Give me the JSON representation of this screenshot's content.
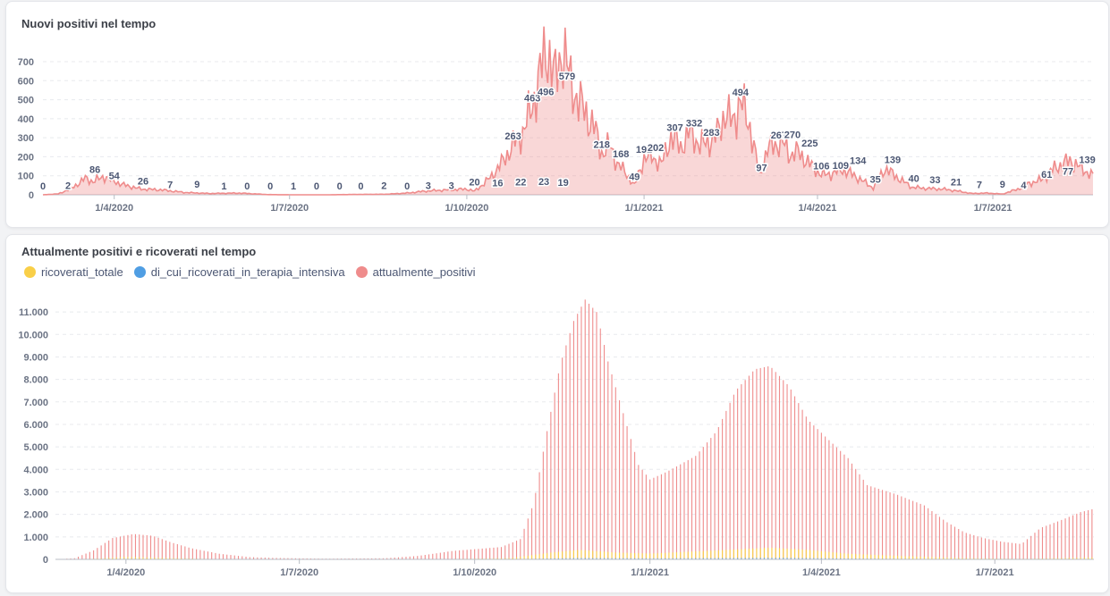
{
  "charts": [
    {
      "title": "Nuovi positivi nel tempo"
    },
    {
      "title": "Attualmente positivi e ricoverati nel tempo",
      "legend": [
        {
          "label": "ricoverati_totale",
          "color": "#f9cf48"
        },
        {
          "label": "di_cui_ricoverati_in_terapia_intensiva",
          "color": "#509ee3"
        },
        {
          "label": "attualmente_positivi",
          "color": "#ef8c8c"
        }
      ]
    }
  ],
  "chart_data": [
    {
      "type": "area",
      "title": "Nuovi positivi nel tempo",
      "x_start": "2020-02-24",
      "x_end": "2021-08-22",
      "x_ticks": [
        "1/4/2020",
        "1/7/2020",
        "1/10/2020",
        "1/1/2021",
        "1/4/2021",
        "1/7/2021"
      ],
      "y_ticks": [
        0,
        100,
        200,
        300,
        400,
        500,
        600,
        700
      ],
      "ylim": [
        0,
        780
      ],
      "color": "#ef8c8c",
      "grid": true,
      "series": [
        {
          "values": [
            [
              "2020-02-24",
              0
            ],
            [
              "2020-03-03",
              5
            ],
            [
              "2020-03-10",
              35
            ],
            [
              "2020-03-17",
              86
            ],
            [
              "2020-03-21",
              70
            ],
            [
              "2020-03-27",
              96
            ],
            [
              "2020-04-05",
              54
            ],
            [
              "2020-04-15",
              30
            ],
            [
              "2020-04-25",
              26
            ],
            [
              "2020-05-08",
              12
            ],
            [
              "2020-05-20",
              7
            ],
            [
              "2020-06-05",
              9
            ],
            [
              "2020-06-20",
              1
            ],
            [
              "2020-07-05",
              0
            ],
            [
              "2020-07-20",
              0
            ],
            [
              "2020-08-05",
              2
            ],
            [
              "2020-08-20",
              3
            ],
            [
              "2020-09-01",
              10
            ],
            [
              "2020-09-10",
              20
            ],
            [
              "2020-09-20",
              25
            ],
            [
              "2020-10-01",
              30
            ],
            [
              "2020-10-05",
              19
            ],
            [
              "2020-10-10",
              60
            ],
            [
              "2020-10-15",
              110
            ],
            [
              "2020-10-20",
              180
            ],
            [
              "2020-10-25",
              263
            ],
            [
              "2020-10-30",
              330
            ],
            [
              "2020-11-04",
              463
            ],
            [
              "2020-11-08",
              640
            ],
            [
              "2020-11-12",
              770
            ],
            [
              "2020-11-16",
              600
            ],
            [
              "2020-11-20",
              780
            ],
            [
              "2020-11-24",
              579
            ],
            [
              "2020-11-28",
              496
            ],
            [
              "2020-12-02",
              420
            ],
            [
              "2020-12-06",
              360
            ],
            [
              "2020-12-10",
              218
            ],
            [
              "2020-12-14",
              260
            ],
            [
              "2020-12-18",
              168
            ],
            [
              "2020-12-22",
              120
            ],
            [
              "2020-12-27",
              49
            ],
            [
              "2021-01-01",
              192
            ],
            [
              "2021-01-05",
              202
            ],
            [
              "2021-01-10",
              160
            ],
            [
              "2021-01-15",
              307
            ],
            [
              "2021-01-20",
              250
            ],
            [
              "2021-01-25",
              332
            ],
            [
              "2021-01-30",
              260
            ],
            [
              "2021-02-04",
              283
            ],
            [
              "2021-02-08",
              320
            ],
            [
              "2021-02-12",
              430
            ],
            [
              "2021-02-16",
              380
            ],
            [
              "2021-02-20",
              494
            ],
            [
              "2021-02-25",
              360
            ],
            [
              "2021-03-02",
              97
            ],
            [
              "2021-03-06",
              240
            ],
            [
              "2021-03-10",
              267
            ],
            [
              "2021-03-14",
              270
            ],
            [
              "2021-03-18",
              210
            ],
            [
              "2021-03-22",
              225
            ],
            [
              "2021-03-28",
              160
            ],
            [
              "2021-04-03",
              106
            ],
            [
              "2021-04-08",
              109
            ],
            [
              "2021-04-14",
              134
            ],
            [
              "2021-04-22",
              90
            ],
            [
              "2021-04-30",
              35
            ],
            [
              "2021-05-06",
              139
            ],
            [
              "2021-05-14",
              80
            ],
            [
              "2021-05-20",
              40
            ],
            [
              "2021-05-28",
              33
            ],
            [
              "2021-06-05",
              30
            ],
            [
              "2021-06-12",
              21
            ],
            [
              "2021-06-20",
              7
            ],
            [
              "2021-06-28",
              9
            ],
            [
              "2021-07-06",
              4
            ],
            [
              "2021-07-14",
              30
            ],
            [
              "2021-07-20",
              61
            ],
            [
              "2021-07-26",
              77
            ],
            [
              "2021-08-02",
              140
            ],
            [
              "2021-08-10",
              180
            ],
            [
              "2021-08-16",
              139
            ],
            [
              "2021-08-22",
              100
            ]
          ]
        }
      ],
      "data_labels": [
        {
          "x": "2020-02-24",
          "v": 0,
          "t": "0"
        },
        {
          "x": "2020-03-08",
          "v": 2,
          "t": "2"
        },
        {
          "x": "2020-03-22",
          "v": 86,
          "t": "86"
        },
        {
          "x": "2020-04-01",
          "v": 54,
          "t": "54"
        },
        {
          "x": "2020-04-16",
          "v": 26,
          "t": "26"
        },
        {
          "x": "2020-04-30",
          "v": 7,
          "t": "7"
        },
        {
          "x": "2020-05-14",
          "v": 9,
          "t": "9"
        },
        {
          "x": "2020-05-28",
          "v": 1,
          "t": "1"
        },
        {
          "x": "2020-06-09",
          "v": 0,
          "t": "0"
        },
        {
          "x": "2020-06-21",
          "v": 0,
          "t": "0"
        },
        {
          "x": "2020-07-03",
          "v": 1,
          "t": "1"
        },
        {
          "x": "2020-07-15",
          "v": 0,
          "t": "0"
        },
        {
          "x": "2020-07-27",
          "v": 0,
          "t": "0"
        },
        {
          "x": "2020-08-07",
          "v": 0,
          "t": "0"
        },
        {
          "x": "2020-08-19",
          "v": 2,
          "t": "2"
        },
        {
          "x": "2020-08-31",
          "v": 0,
          "t": "0"
        },
        {
          "x": "2020-09-11",
          "v": 3,
          "t": "3"
        },
        {
          "x": "2020-09-23",
          "v": 3,
          "t": "3"
        },
        {
          "x": "2020-10-05",
          "v": 20,
          "t": "20"
        },
        {
          "x": "2020-10-17",
          "v": 16,
          "t": "16"
        },
        {
          "x": "2020-10-29",
          "v": 22,
          "t": "22"
        },
        {
          "x": "2020-11-10",
          "v": 23,
          "t": "23"
        },
        {
          "x": "2020-11-20",
          "v": 19,
          "t": "19"
        },
        {
          "x": "2020-10-25",
          "v": 263,
          "t": "263"
        },
        {
          "x": "2020-11-04",
          "v": 463,
          "t": "463"
        },
        {
          "x": "2020-11-11",
          "v": 496,
          "t": "496"
        },
        {
          "x": "2020-11-22",
          "v": 579,
          "t": "579"
        },
        {
          "x": "2020-12-10",
          "v": 218,
          "t": "218"
        },
        {
          "x": "2020-12-20",
          "v": 168,
          "t": "168"
        },
        {
          "x": "2020-12-27",
          "v": 49,
          "t": "49"
        },
        {
          "x": "2021-01-01",
          "v": 192,
          "t": "192"
        },
        {
          "x": "2021-01-07",
          "v": 202,
          "t": "202"
        },
        {
          "x": "2021-01-17",
          "v": 307,
          "t": "307"
        },
        {
          "x": "2021-01-27",
          "v": 332,
          "t": "332"
        },
        {
          "x": "2021-02-05",
          "v": 283,
          "t": "283"
        },
        {
          "x": "2021-02-20",
          "v": 494,
          "t": "494"
        },
        {
          "x": "2021-03-03",
          "v": 97,
          "t": "97"
        },
        {
          "x": "2021-03-12",
          "v": 267,
          "t": "267"
        },
        {
          "x": "2021-03-19",
          "v": 270,
          "t": "270"
        },
        {
          "x": "2021-03-28",
          "v": 225,
          "t": "225"
        },
        {
          "x": "2021-04-03",
          "v": 106,
          "t": "106"
        },
        {
          "x": "2021-04-13",
          "v": 109,
          "t": "109"
        },
        {
          "x": "2021-04-22",
          "v": 134,
          "t": "134"
        },
        {
          "x": "2021-05-01",
          "v": 35,
          "t": "35"
        },
        {
          "x": "2021-05-10",
          "v": 139,
          "t": "139"
        },
        {
          "x": "2021-05-21",
          "v": 40,
          "t": "40"
        },
        {
          "x": "2021-06-01",
          "v": 33,
          "t": "33"
        },
        {
          "x": "2021-06-12",
          "v": 21,
          "t": "21"
        },
        {
          "x": "2021-06-24",
          "v": 7,
          "t": "7"
        },
        {
          "x": "2021-07-06",
          "v": 9,
          "t": "9"
        },
        {
          "x": "2021-07-17",
          "v": 4,
          "t": "4"
        },
        {
          "x": "2021-07-29",
          "v": 61,
          "t": "61"
        },
        {
          "x": "2021-08-09",
          "v": 77,
          "t": "77"
        },
        {
          "x": "2021-08-19",
          "v": 139,
          "t": "139"
        }
      ]
    },
    {
      "type": "bar",
      "title": "Attualmente positivi e ricoverati nel tempo",
      "x_start": "2020-02-24",
      "x_end": "2021-08-22",
      "x_ticks": [
        "1/4/2020",
        "1/7/2020",
        "1/10/2020",
        "1/1/2021",
        "1/4/2021",
        "1/7/2021"
      ],
      "y_ticks": [
        "0",
        "1.000",
        "2.000",
        "3.000",
        "4.000",
        "5.000",
        "6.000",
        "7.000",
        "8.000",
        "9.000",
        "10.000",
        "11.000"
      ],
      "ylim": [
        0,
        11600
      ],
      "grid": true,
      "series": [
        {
          "name": "attualmente_positivi",
          "color": "#ef8c8c",
          "values": [
            [
              "2020-02-24",
              0
            ],
            [
              "2020-03-05",
              50
            ],
            [
              "2020-03-15",
              400
            ],
            [
              "2020-03-25",
              950
            ],
            [
              "2020-04-05",
              1130
            ],
            [
              "2020-04-15",
              1050
            ],
            [
              "2020-04-25",
              750
            ],
            [
              "2020-05-05",
              500
            ],
            [
              "2020-05-20",
              250
            ],
            [
              "2020-06-05",
              100
            ],
            [
              "2020-06-20",
              60
            ],
            [
              "2020-07-15",
              30
            ],
            [
              "2020-08-15",
              50
            ],
            [
              "2020-09-01",
              150
            ],
            [
              "2020-09-20",
              380
            ],
            [
              "2020-10-05",
              480
            ],
            [
              "2020-10-15",
              550
            ],
            [
              "2020-10-25",
              900
            ],
            [
              "2020-11-01",
              2500
            ],
            [
              "2020-11-08",
              5700
            ],
            [
              "2020-11-15",
              8700
            ],
            [
              "2020-11-22",
              10600
            ],
            [
              "2020-11-28",
              11550
            ],
            [
              "2020-12-04",
              11000
            ],
            [
              "2020-12-10",
              8800
            ],
            [
              "2020-12-18",
              6500
            ],
            [
              "2020-12-26",
              4200
            ],
            [
              "2021-01-01",
              3550
            ],
            [
              "2021-01-10",
              3900
            ],
            [
              "2021-01-25",
              4600
            ],
            [
              "2021-02-05",
              5700
            ],
            [
              "2021-02-15",
              7500
            ],
            [
              "2021-02-25",
              8450
            ],
            [
              "2021-03-05",
              8600
            ],
            [
              "2021-03-15",
              7700
            ],
            [
              "2021-03-25",
              6200
            ],
            [
              "2021-04-05",
              5300
            ],
            [
              "2021-04-15",
              4500
            ],
            [
              "2021-04-25",
              3300
            ],
            [
              "2021-05-10",
              2900
            ],
            [
              "2021-05-25",
              2400
            ],
            [
              "2021-06-05",
              1700
            ],
            [
              "2021-06-15",
              1200
            ],
            [
              "2021-06-25",
              950
            ],
            [
              "2021-07-05",
              780
            ],
            [
              "2021-07-15",
              680
            ],
            [
              "2021-07-25",
              1400
            ],
            [
              "2021-08-05",
              1750
            ],
            [
              "2021-08-15",
              2100
            ],
            [
              "2021-08-22",
              2250
            ]
          ]
        },
        {
          "name": "ricoverati_totale",
          "color": "#f9cf48",
          "values": [
            [
              "2020-02-24",
              0
            ],
            [
              "2020-03-15",
              30
            ],
            [
              "2020-04-01",
              110
            ],
            [
              "2020-04-15",
              80
            ],
            [
              "2020-05-15",
              20
            ],
            [
              "2020-06-15",
              5
            ],
            [
              "2020-09-15",
              15
            ],
            [
              "2020-10-20",
              60
            ],
            [
              "2020-11-10",
              300
            ],
            [
              "2020-11-25",
              420
            ],
            [
              "2020-12-15",
              300
            ],
            [
              "2021-01-01",
              260
            ],
            [
              "2021-02-01",
              380
            ],
            [
              "2021-03-05",
              520
            ],
            [
              "2021-03-25",
              420
            ],
            [
              "2021-04-15",
              250
            ],
            [
              "2021-05-15",
              140
            ],
            [
              "2021-06-15",
              60
            ],
            [
              "2021-07-15",
              25
            ],
            [
              "2021-08-22",
              90
            ]
          ]
        },
        {
          "name": "di_cui_ricoverati_in_terapia_intensiva",
          "color": "#509ee3",
          "values": [
            [
              "2020-02-24",
              0
            ],
            [
              "2020-04-01",
              25
            ],
            [
              "2020-05-01",
              8
            ],
            [
              "2020-06-15",
              2
            ],
            [
              "2020-10-20",
              10
            ],
            [
              "2020-11-25",
              60
            ],
            [
              "2021-01-01",
              45
            ],
            [
              "2021-03-10",
              70
            ],
            [
              "2021-04-20",
              35
            ],
            [
              "2021-06-15",
              8
            ],
            [
              "2021-08-22",
              15
            ]
          ]
        }
      ]
    }
  ]
}
